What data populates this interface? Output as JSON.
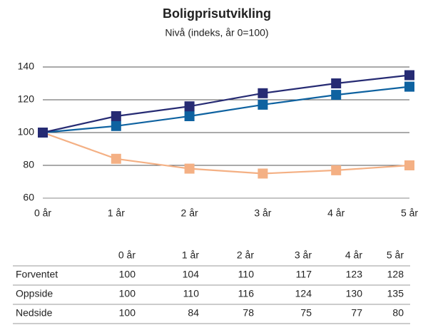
{
  "chart_data": {
    "type": "line",
    "title": "Boligprisutvikling",
    "subtitle": "Nivå (indeks, år 0=100)",
    "categories": [
      "0 år",
      "1 år",
      "2 år",
      "3 år",
      "4 år",
      "5 år"
    ],
    "series": [
      {
        "name": "Forventet",
        "color": "#0e62a0",
        "values": [
          100,
          104,
          110,
          117,
          123,
          128
        ]
      },
      {
        "name": "Oppside",
        "color": "#262b73",
        "values": [
          100,
          110,
          116,
          124,
          130,
          135
        ]
      },
      {
        "name": "Nedside",
        "color": "#f4b084",
        "values": [
          100,
          84,
          78,
          75,
          77,
          80
        ]
      }
    ],
    "ylim": [
      60,
      140
    ],
    "yticks": [
      60,
      80,
      100,
      120,
      140
    ],
    "grid": true
  }
}
